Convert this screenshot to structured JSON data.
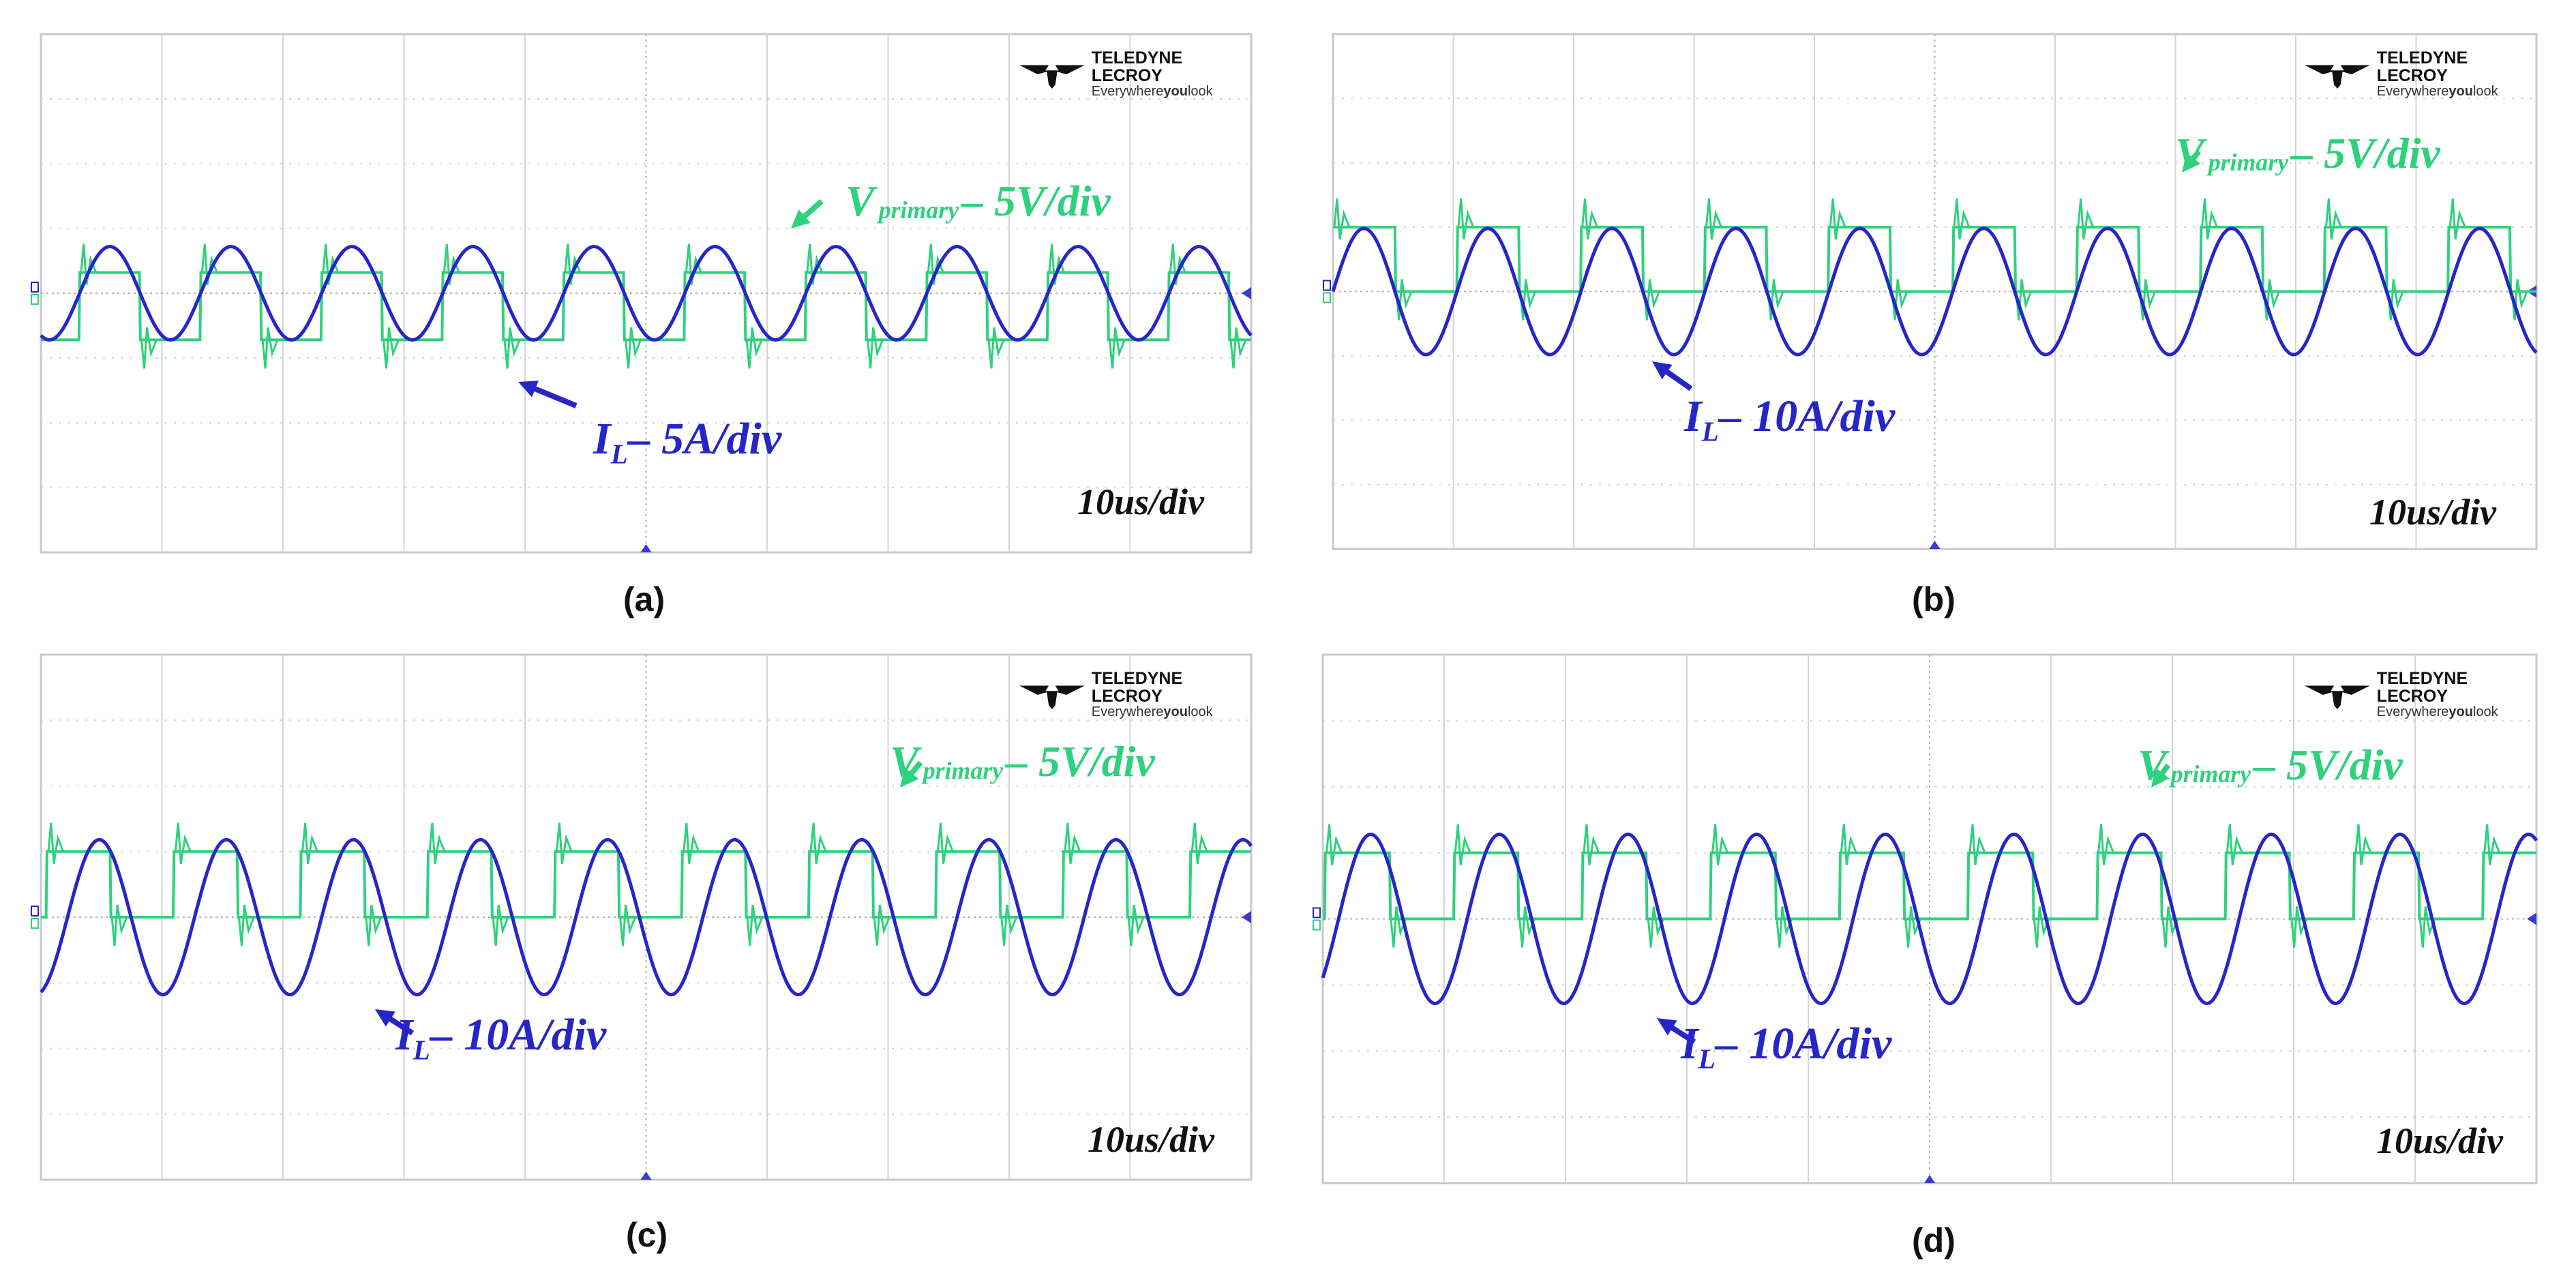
{
  "brand": {
    "name": "TELEDYNE LECROY",
    "tagline_pre": "Everywhere",
    "tagline_bold": "you",
    "tagline_post": "look"
  },
  "colors": {
    "current": "#2626c8",
    "voltage": "#2ed17c",
    "grid": "#d4d4d4",
    "marker": "#3a3ad8"
  },
  "chart_data": [
    {
      "type": "line",
      "caption": "(a)",
      "timebase": "10us/div",
      "current_label": {
        "sym": "I",
        "sub": "L",
        "rest": "– 5A/div"
      },
      "voltage_label": {
        "sym": "V",
        "sub": "primary",
        "rest": "– 5V/div"
      },
      "divisions": {
        "x": 10,
        "y": 8
      },
      "xlim": [
        0,
        100
      ],
      "current": {
        "period_us": 10,
        "amplitude_div": 0.72,
        "offset_div": 0,
        "phase_us": 3.2
      },
      "voltage": {
        "period_us": 10,
        "high_div": 0.32,
        "low_div": -0.72,
        "duty": 0.5,
        "phase_us": 3.2
      }
    },
    {
      "type": "line",
      "caption": "(b)",
      "timebase": "10us/div",
      "current_label": {
        "sym": "I",
        "sub": "L",
        "rest": "– 10A/div"
      },
      "voltage_label": {
        "sym": "V",
        "sub": "primary",
        "rest": "– 5V/div"
      },
      "divisions": {
        "x": 10,
        "y": 8
      },
      "xlim": [
        0,
        100
      ],
      "current": {
        "period_us": 10.3,
        "amplitude_div": 0.98,
        "offset_div": 0,
        "phase_us": 0
      },
      "voltage": {
        "period_us": 10.3,
        "high_div": 1.0,
        "low_div": 0,
        "duty": 0.5,
        "phase_us": 0
      }
    },
    {
      "type": "line",
      "caption": "(c)",
      "timebase": "10us/div",
      "current_label": {
        "sym": "I",
        "sub": "L",
        "rest": "– 10A/div"
      },
      "voltage_label": {
        "sym": "V",
        "sub": "primary",
        "rest": "– 5V/div"
      },
      "divisions": {
        "x": 10,
        "y": 8
      },
      "xlim": [
        0,
        100
      ],
      "current": {
        "period_us": 10.5,
        "amplitude_div": 1.18,
        "offset_div": 0,
        "phase_us": 2.2
      },
      "voltage": {
        "period_us": 10.5,
        "high_div": 1.0,
        "low_div": 0,
        "duty": 0.5,
        "phase_us": 0.5
      }
    },
    {
      "type": "line",
      "caption": "(d)",
      "timebase": "10us/div",
      "current_label": {
        "sym": "I",
        "sub": "L",
        "rest": "– 10A/div"
      },
      "voltage_label": {
        "sym": "V",
        "sub": "primary",
        "rest": "– 5V/div"
      },
      "divisions": {
        "x": 10,
        "y": 8
      },
      "xlim": [
        0,
        100
      ],
      "current": {
        "period_us": 10.6,
        "amplitude_div": 1.28,
        "offset_div": 0,
        "phase_us": 1.3
      },
      "voltage": {
        "period_us": 10.6,
        "high_div": 1.0,
        "low_div": 0,
        "duty": 0.5,
        "phase_us": 0.2
      }
    }
  ]
}
